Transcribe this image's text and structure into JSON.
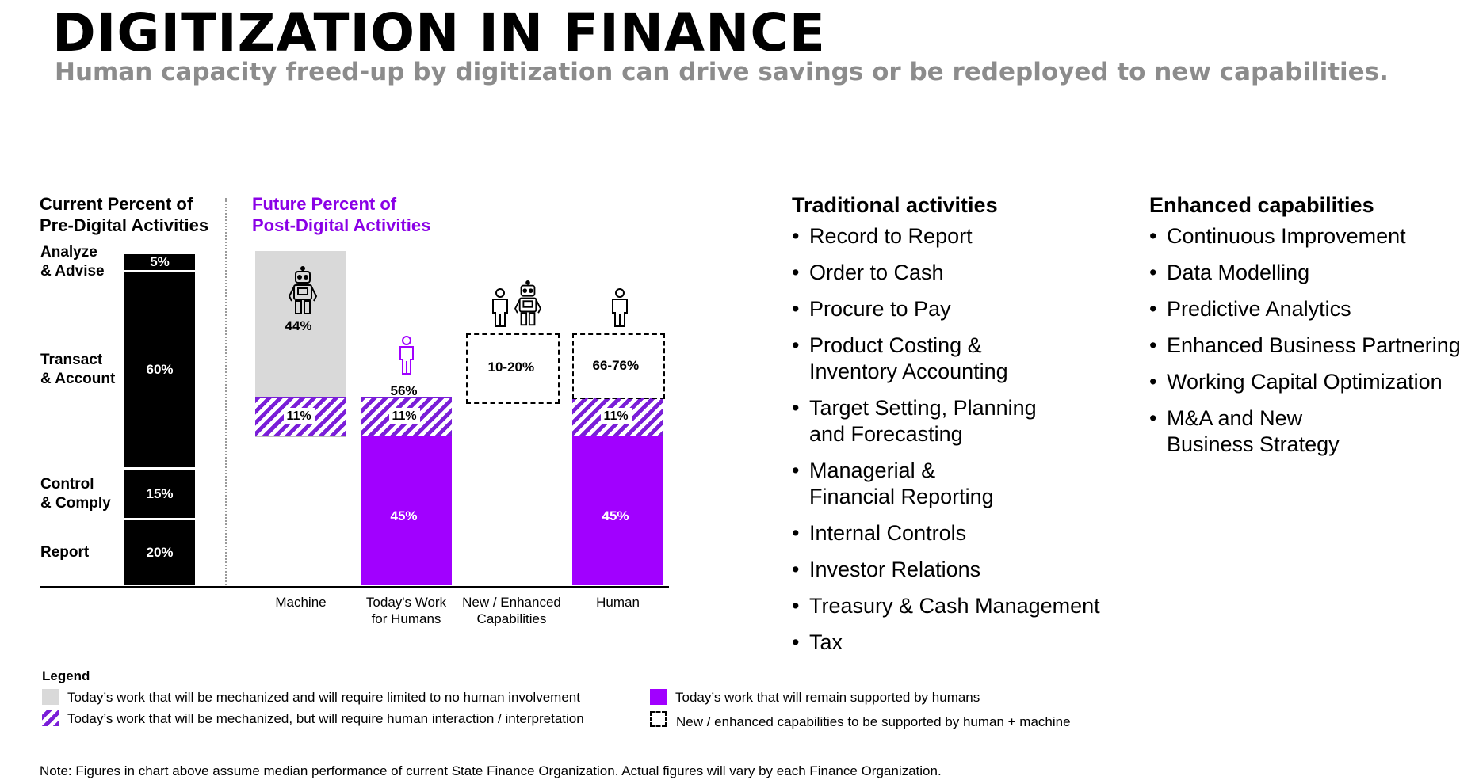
{
  "title": "DIGITIZATION IN FINANCE",
  "subtitle": "Human capacity freed-up by digitization can drive savings or be redeployed to new capabilities.",
  "current": {
    "heading_line1": "Current Percent of",
    "heading_line2": "Pre-Digital Activities"
  },
  "future": {
    "heading_line1": "Future Percent of",
    "heading_line2": "Post-Digital Activities"
  },
  "chart_data": [
    {
      "type": "bar",
      "categories": [
        "Analyze & Advise",
        "Transact & Account",
        "Control & Comply",
        "Report"
      ],
      "values": [
        5,
        60,
        15,
        20
      ],
      "labels": [
        "5%",
        "60%",
        "15%",
        "20%"
      ],
      "category_labels": [
        [
          "Analyze",
          "& Advise"
        ],
        [
          "Transact",
          "& Account"
        ],
        [
          "Control",
          "& Comply"
        ],
        [
          "Report"
        ]
      ]
    },
    {
      "type": "bar",
      "categories": [
        "Machine",
        "Today's Work for Humans",
        "New / Enhanced Capabilities",
        "Human"
      ],
      "category_labels": [
        [
          "Machine"
        ],
        [
          "Today's Work",
          "for Humans"
        ],
        [
          "New / Enhanced",
          "Capabilities"
        ],
        [
          "Human"
        ]
      ],
      "series": [
        {
          "values": [
            0,
            45,
            0,
            45
          ],
          "labels": [
            "",
            "45%",
            "",
            "45%"
          ],
          "color": "#a100ff"
        },
        {
          "values": [
            11,
            11,
            0,
            11
          ],
          "labels": [
            "11%",
            "11%",
            "",
            "11%"
          ],
          "color": "#7a1ed8"
        },
        {
          "values": [
            44,
            0,
            0,
            0
          ],
          "labels": [
            "44%",
            "",
            "",
            ""
          ],
          "color": "#d9d9d9"
        },
        {
          "values": [
            0,
            0,
            20,
            20
          ],
          "labels": [
            "",
            "",
            "10-20%",
            ""
          ]
        }
      ],
      "totals": {
        "Today's Work for Humans": "56%",
        "Human": "66-76%"
      }
    }
  ],
  "traditional": {
    "heading": "Traditional activities",
    "items": [
      [
        "Record to Report"
      ],
      [
        "Order to Cash"
      ],
      [
        "Procure to Pay"
      ],
      [
        "Product Costing &",
        "Inventory Accounting"
      ],
      [
        "Target Setting, Planning",
        "and Forecasting"
      ],
      [
        "Managerial &",
        "Financial Reporting"
      ],
      [
        "Internal Controls"
      ],
      [
        "Investor Relations"
      ],
      [
        "Treasury & Cash Management"
      ],
      [
        "Tax"
      ]
    ]
  },
  "enhanced": {
    "heading": "Enhanced capabilities",
    "items": [
      [
        "Continuous Improvement"
      ],
      [
        "Data Modelling"
      ],
      [
        "Predictive Analytics"
      ],
      [
        "Enhanced Business Partnering"
      ],
      [
        "Working Capital Optimization"
      ],
      [
        "M&A and New",
        "Business Strategy"
      ]
    ]
  },
  "legend": {
    "title": "Legend",
    "items": [
      {
        "text": "Today’s work that will be mechanized and will require limited to no human involvement",
        "color": "#d9d9d9"
      },
      {
        "text": "Today’s work that will be mechanized, but will require human interaction / interpretation",
        "color": "#7a1ed8"
      },
      {
        "text": "Today’s work that will remain supported by humans",
        "color": "#a100ff"
      },
      {
        "text": "New / enhanced capabilities to be supported by human + machine"
      }
    ]
  },
  "note": "Note: Figures in chart above assume median performance of current State Finance Organization. Actual figures will vary by each Finance Organization.",
  "colors": {
    "accent": "#a100ff",
    "hatch": "#7a1ed8",
    "grey": "#d9d9d9",
    "subtitle": "#8c8c8c"
  }
}
